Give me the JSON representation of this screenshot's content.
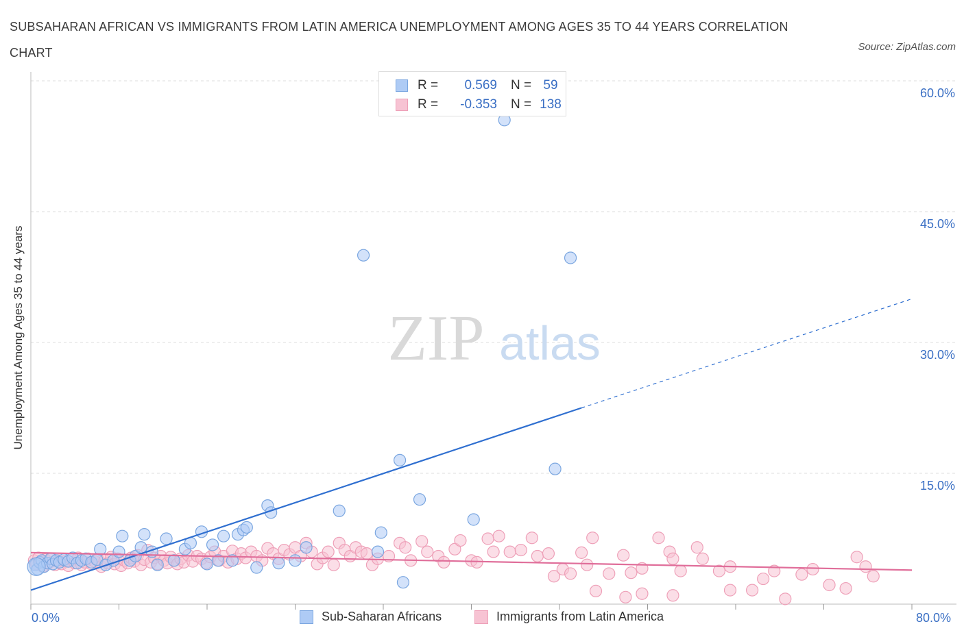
{
  "title": "SUBSAHARAN AFRICAN VS IMMIGRANTS FROM LATIN AMERICA UNEMPLOYMENT AMONG AGES 35 TO 44 YEARS CORRELATION CHART",
  "source": "Source: ZipAtlas.com",
  "watermark": {
    "zip": "ZIP",
    "atlas": "atlas"
  },
  "legend": {
    "series1": {
      "r_label": "R =",
      "r_value": "0.569",
      "n_label": "N =",
      "n_value": "59"
    },
    "series2": {
      "r_label": "R =",
      "r_value": "-0.353",
      "n_label": "N =",
      "n_value": "138"
    }
  },
  "colors": {
    "series1_fill": "#aecbf5",
    "series1_stroke": "#7aa6e0",
    "series1_line": "#2f6fd0",
    "series2_fill": "#f7c3d3",
    "series2_stroke": "#eea0b8",
    "series2_line": "#e06e9a",
    "tick_text": "#3a6fc4",
    "grid": "#dddddd"
  },
  "chart_data": {
    "type": "scatter",
    "title": "SUBSAHARAN AFRICAN VS IMMIGRANTS FROM LATIN AMERICA UNEMPLOYMENT AMONG AGES 35 TO 44 YEARS CORRELATION CHART",
    "xlabel": "",
    "ylabel": "Unemployment Among Ages 35 to 44 years",
    "xlim": [
      0,
      80
    ],
    "ylim": [
      0,
      60
    ],
    "x_tick_labels": [
      "0.0%",
      "80.0%"
    ],
    "y_tick_values": [
      15,
      30,
      45,
      60
    ],
    "y_tick_labels": [
      "15.0%",
      "30.0%",
      "45.0%",
      "60.0%"
    ],
    "grid": true,
    "legend_position": "top-center",
    "series": [
      {
        "name": "Sub-Saharan Africans",
        "r": 0.569,
        "n": 59,
        "trend": {
          "x0": 0,
          "y0": 1.6,
          "x1": 50,
          "y1": 22.5,
          "dashed_to_x": 80,
          "dashed_to_y": 35
        },
        "points": [
          [
            0.4,
            4.5
          ],
          [
            0.6,
            4.0
          ],
          [
            0.8,
            4.8
          ],
          [
            1.0,
            5.0
          ],
          [
            1.2,
            4.3
          ],
          [
            1.5,
            4.7
          ],
          [
            1.8,
            5.2
          ],
          [
            2.0,
            4.6
          ],
          [
            2.3,
            5.0
          ],
          [
            2.6,
            4.8
          ],
          [
            3.0,
            5.1
          ],
          [
            3.4,
            4.9
          ],
          [
            3.8,
            5.3
          ],
          [
            4.2,
            4.7
          ],
          [
            4.6,
            5.0
          ],
          [
            5.0,
            5.2
          ],
          [
            5.5,
            4.8
          ],
          [
            6.0,
            5.1
          ],
          [
            6.3,
            6.3
          ],
          [
            6.8,
            4.5
          ],
          [
            7.5,
            5.0
          ],
          [
            8.0,
            6.0
          ],
          [
            8.3,
            7.8
          ],
          [
            9.0,
            5.0
          ],
          [
            9.5,
            5.5
          ],
          [
            10.0,
            6.5
          ],
          [
            10.3,
            8.0
          ],
          [
            11.0,
            6.0
          ],
          [
            11.5,
            4.5
          ],
          [
            12.3,
            7.5
          ],
          [
            13.0,
            5.0
          ],
          [
            14.0,
            6.3
          ],
          [
            14.5,
            7.0
          ],
          [
            15.5,
            8.3
          ],
          [
            16.0,
            4.6
          ],
          [
            16.5,
            6.8
          ],
          [
            17.0,
            5.0
          ],
          [
            17.5,
            7.8
          ],
          [
            18.3,
            5.0
          ],
          [
            18.8,
            8.0
          ],
          [
            19.3,
            8.5
          ],
          [
            19.6,
            8.8
          ],
          [
            20.5,
            4.2
          ],
          [
            21.5,
            11.3
          ],
          [
            21.8,
            10.5
          ],
          [
            22.5,
            4.7
          ],
          [
            24.0,
            5.0
          ],
          [
            25.0,
            6.5
          ],
          [
            28.0,
            10.7
          ],
          [
            30.2,
            40.0
          ],
          [
            31.5,
            6.0
          ],
          [
            31.8,
            8.2
          ],
          [
            33.8,
            2.5
          ],
          [
            33.5,
            16.5
          ],
          [
            35.3,
            12.0
          ],
          [
            40.2,
            9.7
          ],
          [
            43.0,
            55.5
          ],
          [
            47.6,
            15.5
          ],
          [
            49.0,
            39.7
          ]
        ]
      },
      {
        "name": "Immigrants from Latin America",
        "r": -0.353,
        "n": 138,
        "trend": {
          "x0": 0,
          "y0": 5.9,
          "x1": 80,
          "y1": 3.9
        },
        "points": [
          [
            0.3,
            5.0
          ],
          [
            0.5,
            4.6
          ],
          [
            0.7,
            5.3
          ],
          [
            0.9,
            4.8
          ],
          [
            1.1,
            4.3
          ],
          [
            1.3,
            5.1
          ],
          [
            1.6,
            4.7
          ],
          [
            1.9,
            5.2
          ],
          [
            2.2,
            4.5
          ],
          [
            2.5,
            5.0
          ],
          [
            2.8,
            4.6
          ],
          [
            3.1,
            4.9
          ],
          [
            3.4,
            4.4
          ],
          [
            3.7,
            5.1
          ],
          [
            4.0,
            4.7
          ],
          [
            4.3,
            5.3
          ],
          [
            4.6,
            4.5
          ],
          [
            4.9,
            4.8
          ],
          [
            5.2,
            5.2
          ],
          [
            5.5,
            4.6
          ],
          [
            5.8,
            4.9
          ],
          [
            6.1,
            5.1
          ],
          [
            6.4,
            4.3
          ],
          [
            6.7,
            5.0
          ],
          [
            7.0,
            4.7
          ],
          [
            7.3,
            5.4
          ],
          [
            7.6,
            4.6
          ],
          [
            7.9,
            5.2
          ],
          [
            8.2,
            4.4
          ],
          [
            8.5,
            5.0
          ],
          [
            8.8,
            4.7
          ],
          [
            9.1,
            5.3
          ],
          [
            9.4,
            4.9
          ],
          [
            9.7,
            5.6
          ],
          [
            10.0,
            4.5
          ],
          [
            10.3,
            5.1
          ],
          [
            10.6,
            6.2
          ],
          [
            10.9,
            4.8
          ],
          [
            11.2,
            5.3
          ],
          [
            11.5,
            4.6
          ],
          [
            11.8,
            5.5
          ],
          [
            12.1,
            5.0
          ],
          [
            12.4,
            4.7
          ],
          [
            12.7,
            5.4
          ],
          [
            13.0,
            5.0
          ],
          [
            13.3,
            4.6
          ],
          [
            13.6,
            5.2
          ],
          [
            13.9,
            4.8
          ],
          [
            14.3,
            5.6
          ],
          [
            14.7,
            4.9
          ],
          [
            15.1,
            5.5
          ],
          [
            15.5,
            5.2
          ],
          [
            15.9,
            4.7
          ],
          [
            16.3,
            5.4
          ],
          [
            16.7,
            6.0
          ],
          [
            17.1,
            5.0
          ],
          [
            17.5,
            5.5
          ],
          [
            17.9,
            4.8
          ],
          [
            18.3,
            6.1
          ],
          [
            18.7,
            5.2
          ],
          [
            19.1,
            5.8
          ],
          [
            19.5,
            5.3
          ],
          [
            20.0,
            6.0
          ],
          [
            20.5,
            5.5
          ],
          [
            21.0,
            5.0
          ],
          [
            21.5,
            6.4
          ],
          [
            22.0,
            5.8
          ],
          [
            22.5,
            5.2
          ],
          [
            23.0,
            6.2
          ],
          [
            23.5,
            5.7
          ],
          [
            24.0,
            6.5
          ],
          [
            24.5,
            5.5
          ],
          [
            25.0,
            7.0
          ],
          [
            25.5,
            6.0
          ],
          [
            26.0,
            4.6
          ],
          [
            26.5,
            5.3
          ],
          [
            27.0,
            6.0
          ],
          [
            27.5,
            4.5
          ],
          [
            28.0,
            7.0
          ],
          [
            28.5,
            6.2
          ],
          [
            29.0,
            5.5
          ],
          [
            29.5,
            6.5
          ],
          [
            30.0,
            6.0
          ],
          [
            30.5,
            5.8
          ],
          [
            31.0,
            4.5
          ],
          [
            31.5,
            5.2
          ],
          [
            32.5,
            5.5
          ],
          [
            33.5,
            7.0
          ],
          [
            34.0,
            6.5
          ],
          [
            34.5,
            5.0
          ],
          [
            35.5,
            7.2
          ],
          [
            36.0,
            6.0
          ],
          [
            37.0,
            5.5
          ],
          [
            37.5,
            4.8
          ],
          [
            38.5,
            6.3
          ],
          [
            39.0,
            7.3
          ],
          [
            40.0,
            5.0
          ],
          [
            40.5,
            4.8
          ],
          [
            41.5,
            7.5
          ],
          [
            42.0,
            6.0
          ],
          [
            42.5,
            7.8
          ],
          [
            43.5,
            6.0
          ],
          [
            44.5,
            6.2
          ],
          [
            45.5,
            7.6
          ],
          [
            46.0,
            5.5
          ],
          [
            47.0,
            5.8
          ],
          [
            47.5,
            3.2
          ],
          [
            48.3,
            4.0
          ],
          [
            49.0,
            3.5
          ],
          [
            50.0,
            5.9
          ],
          [
            50.5,
            4.5
          ],
          [
            51.0,
            7.6
          ],
          [
            51.3,
            1.5
          ],
          [
            52.5,
            3.5
          ],
          [
            53.8,
            5.6
          ],
          [
            54.0,
            0.8
          ],
          [
            54.5,
            3.6
          ],
          [
            55.5,
            4.1
          ],
          [
            55.5,
            1.2
          ],
          [
            57.0,
            7.6
          ],
          [
            58.0,
            6.0
          ],
          [
            58.3,
            1.0
          ],
          [
            58.3,
            5.2
          ],
          [
            59.0,
            3.8
          ],
          [
            60.5,
            6.5
          ],
          [
            61.0,
            5.2
          ],
          [
            62.5,
            3.8
          ],
          [
            63.5,
            4.3
          ],
          [
            63.5,
            1.6
          ],
          [
            65.5,
            1.6
          ],
          [
            66.5,
            2.9
          ],
          [
            67.5,
            3.8
          ],
          [
            68.5,
            0.6
          ],
          [
            70.0,
            3.4
          ],
          [
            71.0,
            4.0
          ],
          [
            72.5,
            2.2
          ],
          [
            74.0,
            1.8
          ],
          [
            75.0,
            5.4
          ],
          [
            75.8,
            4.3
          ],
          [
            76.5,
            3.2
          ]
        ]
      }
    ]
  },
  "x_axis": {
    "left_label": "0.0%",
    "right_label": "80.0%"
  },
  "bottom_legend": {
    "series1": "Sub-Saharan Africans",
    "series2": "Immigrants from Latin America"
  }
}
